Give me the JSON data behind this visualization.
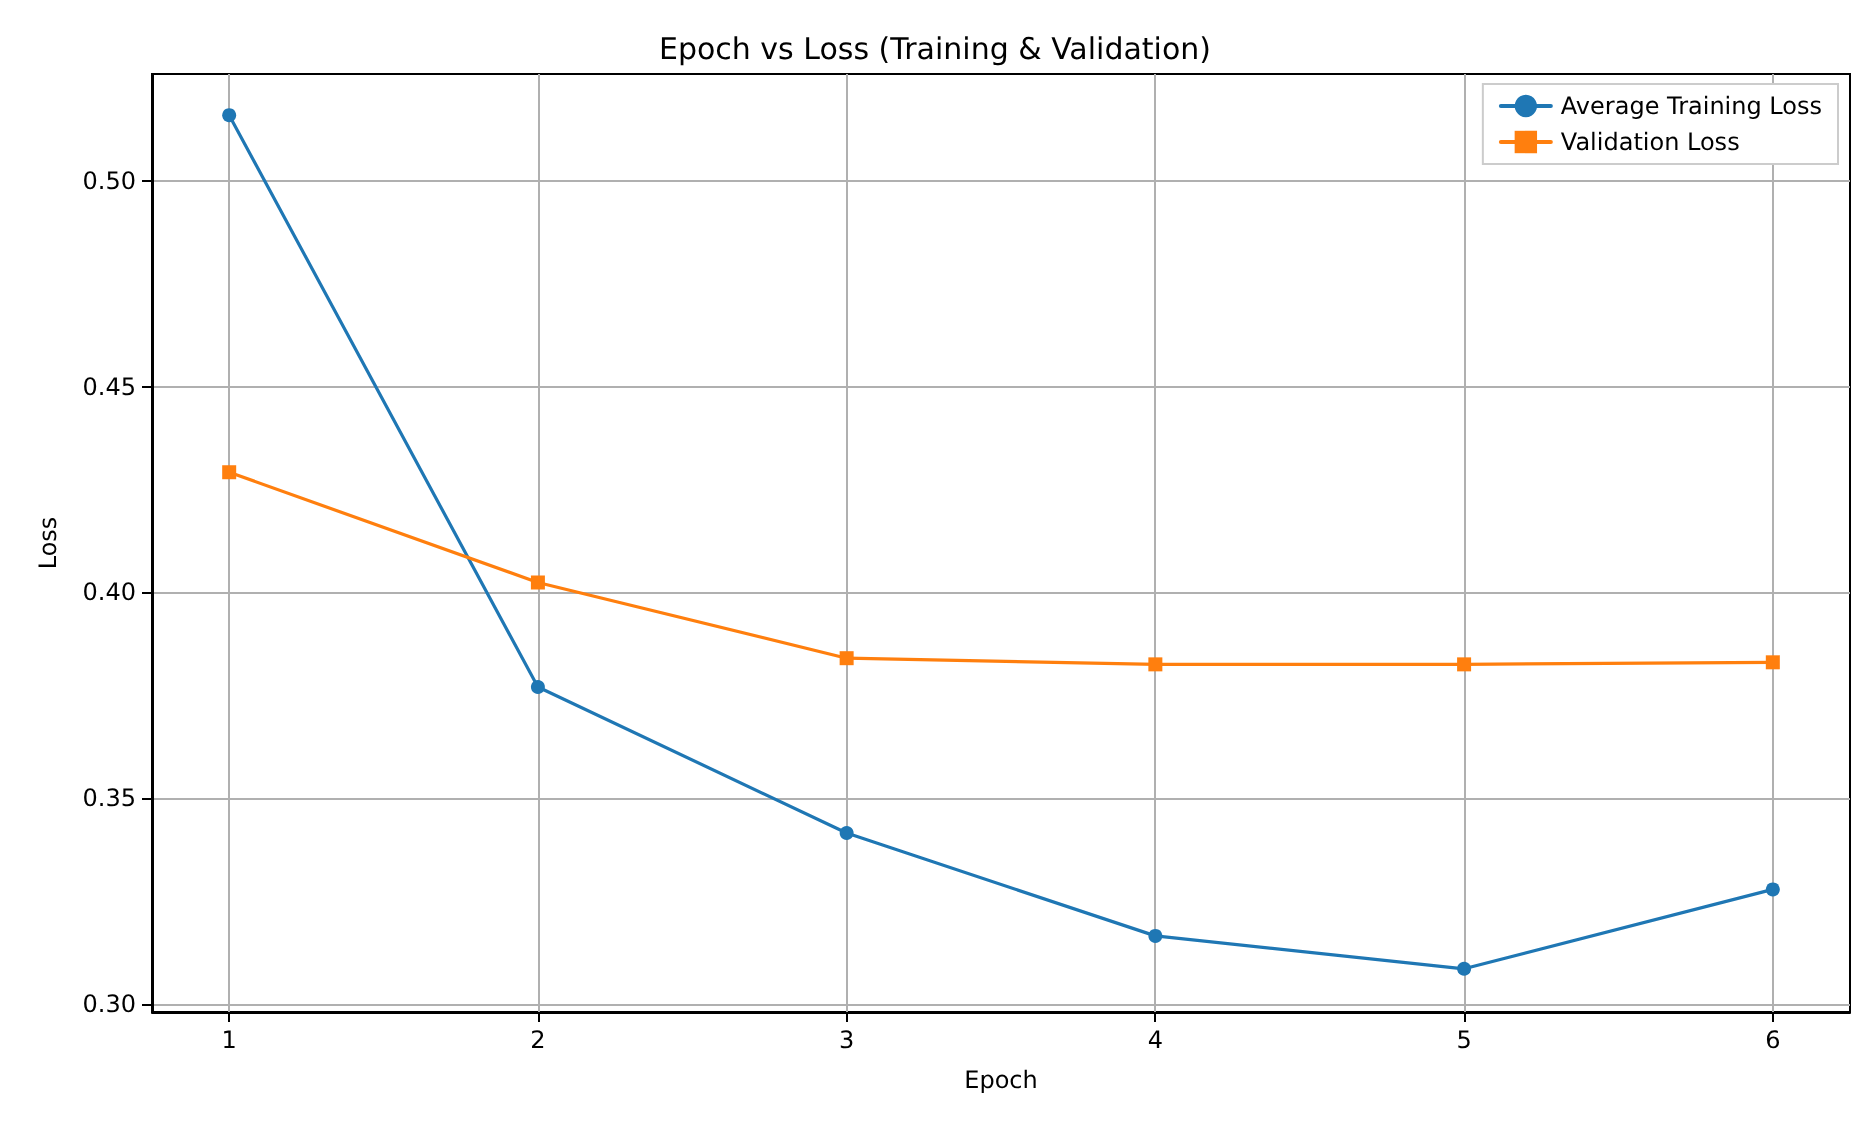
{
  "chart_data": {
    "type": "line",
    "title": "Epoch vs Loss (Training & Validation)",
    "xlabel": "Epoch",
    "ylabel": "Loss",
    "x": [
      1,
      2,
      3,
      4,
      5,
      6
    ],
    "series": [
      {
        "name": "Average Training Loss",
        "color": "#1f77b4",
        "marker": "circle",
        "values": [
          0.516,
          0.377,
          0.3415,
          0.3165,
          0.3085,
          0.3278
        ]
      },
      {
        "name": "Validation Loss",
        "color": "#ff7f0e",
        "marker": "square",
        "values": [
          0.4292,
          0.4024,
          0.384,
          0.3825,
          0.3825,
          0.383
        ]
      }
    ],
    "xlim": [
      0.75,
      6.25
    ],
    "xticks": [
      1,
      2,
      3,
      4,
      5,
      6
    ],
    "ylim": [
      0.298,
      0.526
    ],
    "yticks": [
      {
        "value": 0.3,
        "label": "0.30"
      },
      {
        "value": 0.35,
        "label": "0.35"
      },
      {
        "value": 0.4,
        "label": "0.40"
      },
      {
        "value": 0.45,
        "label": "0.45"
      },
      {
        "value": 0.5,
        "label": "0.50"
      }
    ],
    "grid": true,
    "legend": "top right",
    "line_style": "solid"
  }
}
